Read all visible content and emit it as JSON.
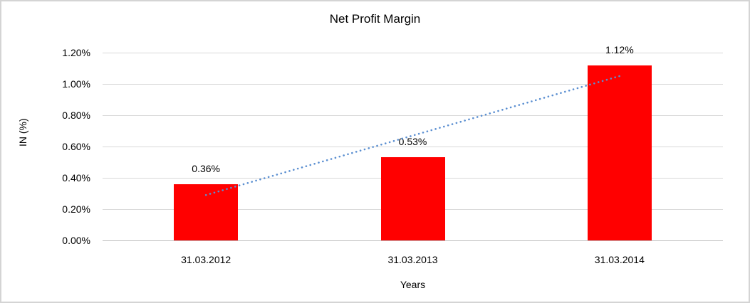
{
  "chart_data": {
    "type": "bar",
    "title": "Net Profit Margin",
    "xlabel": "Years",
    "ylabel": "IN (%)",
    "categories": [
      "31.03.2012",
      "31.03.2013",
      "31.03.2014"
    ],
    "values": [
      0.36,
      0.53,
      1.12
    ],
    "data_labels": [
      "0.36%",
      "0.53%",
      "1.12%"
    ],
    "y_ticks": [
      {
        "label": "0.00%",
        "value": 0.0
      },
      {
        "label": "0.20%",
        "value": 0.2
      },
      {
        "label": "0.40%",
        "value": 0.4
      },
      {
        "label": "0.60%",
        "value": 0.6
      },
      {
        "label": "0.80%",
        "value": 0.8
      },
      {
        "label": "1.00%",
        "value": 1.0
      },
      {
        "label": "1.20%",
        "value": 1.2
      }
    ],
    "ylim": [
      0,
      1.2
    ],
    "grid": true,
    "legend": "none",
    "bar_color": "#ff0000",
    "trendline": {
      "type": "linear",
      "style": "dotted",
      "color": "#5b8fd1",
      "start_category_index": 0,
      "start_value": 0.29,
      "end_category_index": 2,
      "end_value": 1.05
    }
  }
}
